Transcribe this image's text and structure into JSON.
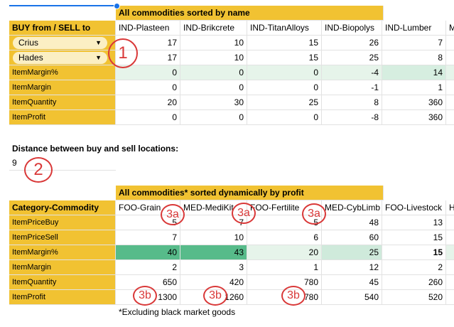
{
  "table1": {
    "title": "All commodities sorted by name",
    "header_label": "BUY from / SELL to",
    "buy_location": "Crius",
    "sell_location": "Hades",
    "columns": [
      "IND-Plasteen",
      "IND-Brikcrete",
      "IND-TitanAlloys",
      "IND-Biopolys",
      "IND-Lumber",
      "M"
    ],
    "rows": [
      {
        "label": "",
        "values": [
          "17",
          "10",
          "15",
          "26",
          "7",
          ""
        ]
      },
      {
        "label": "",
        "values": [
          "17",
          "10",
          "15",
          "25",
          "8",
          ""
        ]
      },
      {
        "label": "ItemMargin%",
        "values": [
          "0",
          "0",
          "0",
          "-4",
          "14",
          ""
        ]
      },
      {
        "label": "ItemMargin",
        "values": [
          "0",
          "0",
          "0",
          "-1",
          "1",
          ""
        ]
      },
      {
        "label": "ItemQuantity",
        "values": [
          "20",
          "30",
          "25",
          "8",
          "360",
          ""
        ]
      },
      {
        "label": "ItemProfit",
        "values": [
          "0",
          "0",
          "0",
          "-8",
          "360",
          ""
        ]
      }
    ]
  },
  "distance": {
    "label": "Distance between buy and sell locations:",
    "value": "9"
  },
  "table2": {
    "title": "All commodities* sorted dynamically by profit",
    "header_label": "Category-Commodity",
    "columns": [
      "FOO-Grain",
      "MED-MediKit",
      "FOO-Fertilite",
      "MED-CybLimb",
      "FOO-Livestock",
      "H"
    ],
    "rows": [
      {
        "label": "ItemPriceBuy",
        "values": [
          "5",
          "7",
          "5",
          "48",
          "13",
          ""
        ]
      },
      {
        "label": "ItemPriceSell",
        "values": [
          "7",
          "10",
          "6",
          "60",
          "15",
          ""
        ]
      },
      {
        "label": "ItemMargin%",
        "values": [
          "40",
          "43",
          "20",
          "25",
          "15",
          ""
        ]
      },
      {
        "label": "ItemMargin",
        "values": [
          "2",
          "3",
          "1",
          "12",
          "2",
          ""
        ]
      },
      {
        "label": "ItemQuantity",
        "values": [
          "650",
          "420",
          "780",
          "45",
          "260",
          ""
        ]
      },
      {
        "label": "ItemProfit",
        "values": [
          "1300",
          "1260",
          "780",
          "540",
          "520",
          ""
        ]
      }
    ],
    "footnote": "*Excluding black market goods"
  },
  "annotations": {
    "a1": "1",
    "a2": "2",
    "a3a": "3a",
    "a3b": "3b"
  },
  "colors": {
    "header_yellow": "#f1c232",
    "dropdown_fill": "#fbefc4",
    "margin_green_strong": "#57bb8a",
    "margin_green_light": "#e6f4ea",
    "annotation_red": "#d93838"
  }
}
